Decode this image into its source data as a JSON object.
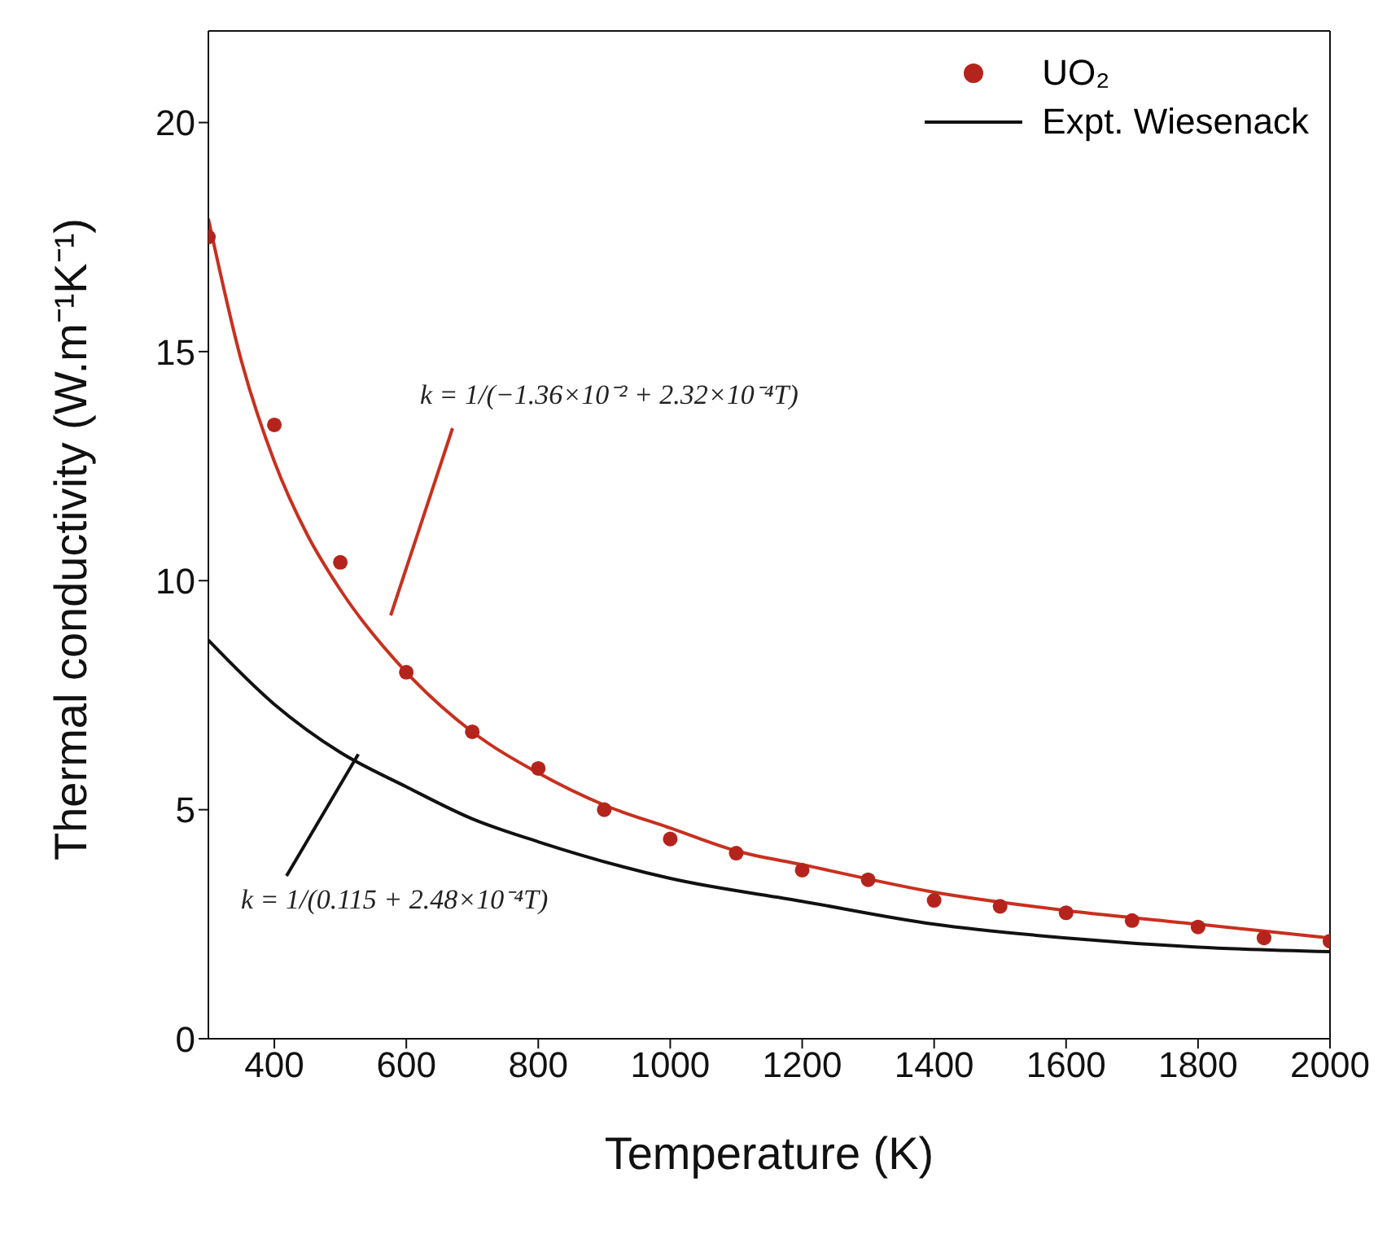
{
  "chart_data": {
    "type": "line",
    "xlabel": "Temperature (K)",
    "ylabel": "Thermal conductivity (W.m⁻¹K⁻¹)",
    "xlim": [
      300,
      2000
    ],
    "xticks": [
      400,
      600,
      800,
      1000,
      1200,
      1400,
      1600,
      1800,
      2000
    ],
    "ylim": [
      0,
      22
    ],
    "yticks": [
      0,
      5,
      10,
      15,
      20
    ],
    "grid": false,
    "legend": "top right",
    "series": [
      {
        "name": "UO₂",
        "type": "scatter",
        "marker": "circle",
        "color": "#b5241c",
        "x": [
          300,
          400,
          500,
          600,
          700,
          800,
          900,
          1000,
          1100,
          1200,
          1300,
          1400,
          1500,
          1600,
          1700,
          1800,
          1900,
          2000
        ],
        "values": [
          17.5,
          13.4,
          10.4,
          8.0,
          6.7,
          5.9,
          5.0,
          4.36,
          4.05,
          3.68,
          3.47,
          3.02,
          2.89,
          2.75,
          2.58,
          2.44,
          2.2,
          2.13
        ]
      },
      {
        "marker": "none",
        "color": "#c8301e",
        "x": [
          300,
          350,
          400,
          450,
          500,
          600,
          700,
          800,
          900,
          1000,
          1100,
          1200,
          1400,
          1600,
          1800,
          2000
        ],
        "values": [
          17.9,
          14.8,
          12.6,
          11.0,
          9.8,
          8.0,
          6.7,
          5.8,
          5.1,
          4.6,
          4.1,
          3.8,
          3.2,
          2.8,
          2.5,
          2.2
        ]
      },
      {
        "name": "Expt. Wiesenack",
        "marker": "none",
        "color": "#111111",
        "x": [
          300,
          400,
          500,
          600,
          700,
          800,
          1000,
          1200,
          1400,
          1600,
          1800,
          2000
        ],
        "values": [
          8.7,
          7.3,
          6.25,
          5.5,
          4.8,
          4.3,
          3.5,
          3.0,
          2.5,
          2.2,
          2.0,
          1.9
        ]
      }
    ],
    "annotations": [
      "k = 1/(−1.36×10⁻² + 2.32×10⁻⁴T)",
      {
        "text": "k = 1/(0.115 + 2.48×10⁻⁴T)",
        "x": 520,
        "y": 6.1
      }
    ]
  }
}
